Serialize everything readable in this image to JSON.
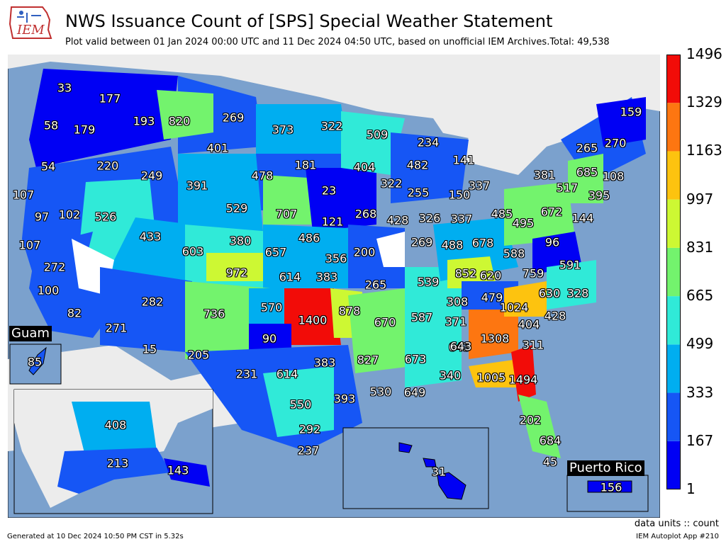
{
  "header": {
    "logo_text": "IEM",
    "title": "NWS Issuance Count of [SPS] Special Weather Statement",
    "subtitle": "Plot valid between 01 Jan 2024 00:00 UTC and 11 Dec 2024 04:50 UTC, based on unofficial IEM Archives.Total: 49,538"
  },
  "colorbar": {
    "ticks": [
      "1496",
      "1329",
      "1163",
      "997",
      "831",
      "665",
      "499",
      "333",
      "167",
      "1"
    ],
    "colors": [
      "#0000f4",
      "#1656f5",
      "#00aef0",
      "#30ead8",
      "#73f36d",
      "#cdf833",
      "#fdc30f",
      "#fd7611",
      "#f20c08"
    ]
  },
  "insets": {
    "guam_title": "Guam",
    "guam_value": "85",
    "alaska_values": [
      "408",
      "213",
      "143"
    ],
    "hawaii_value": "31",
    "pr_title": "Puerto Rico",
    "pr_value": "156"
  },
  "map_labels": [
    "33",
    "177",
    "58",
    "179",
    "193",
    "820",
    "269",
    "373",
    "322",
    "509",
    "234",
    "159",
    "270",
    "265",
    "54",
    "220",
    "249",
    "401",
    "181",
    "404",
    "482",
    "141",
    "685",
    "108",
    "107",
    "97",
    "102",
    "526",
    "391",
    "478",
    "23",
    "322",
    "255",
    "150",
    "337",
    "381",
    "517",
    "395",
    "107",
    "433",
    "529",
    "707",
    "268",
    "428",
    "326",
    "337",
    "485",
    "495",
    "672",
    "144",
    "272",
    "603",
    "380",
    "121",
    "486",
    "269",
    "488",
    "678",
    "588",
    "96",
    "100",
    "972",
    "657",
    "614",
    "383",
    "356",
    "200",
    "852",
    "620",
    "759",
    "591",
    "82",
    "282",
    "736",
    "570",
    "265",
    "539",
    "479",
    "308",
    "630",
    "328",
    "271",
    "1400",
    "878",
    "670",
    "587",
    "371",
    "1024",
    "404",
    "428",
    "15",
    "90",
    "827",
    "673",
    "643",
    "1308",
    "311",
    "205",
    "231",
    "614",
    "383",
    "530",
    "649",
    "340",
    "1005",
    "1494",
    "550",
    "393",
    "643",
    "292",
    "202",
    "237",
    "684",
    "45"
  ],
  "footer": {
    "units": "data units :: count",
    "generated": "Generated at 10 Dec 2024 10:50 PM CST in 5.32s",
    "app": "IEM Autoplot App #210"
  }
}
